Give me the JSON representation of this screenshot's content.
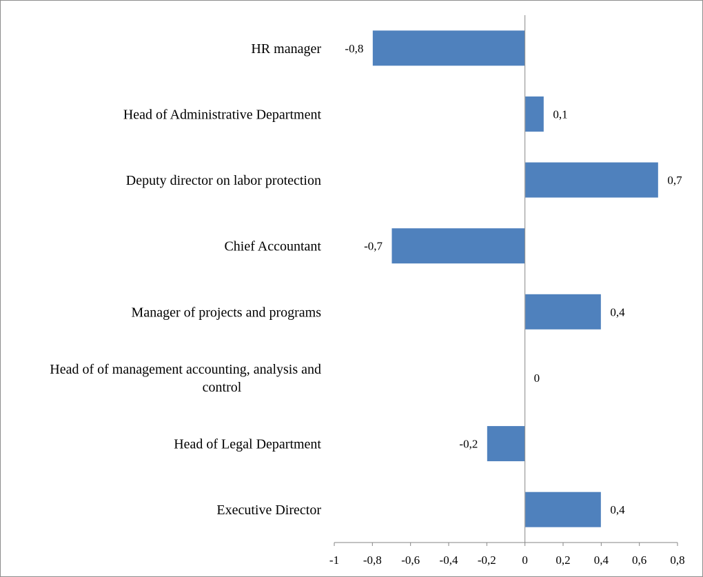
{
  "chart_data": {
    "type": "bar",
    "orientation": "horizontal",
    "categories": [
      "HR manager",
      "Head of Administrative Department",
      "Deputy director on labor protection",
      "Chief Accountant",
      "Manager of projects and programs",
      "Head of of management accounting, analysis and control",
      "Head of Legal Department",
      "Executive Director"
    ],
    "category_lines": [
      [
        "HR manager"
      ],
      [
        "Head of Administrative Department"
      ],
      [
        "Deputy director on labor protection"
      ],
      [
        "Chief Accountant"
      ],
      [
        "Manager of projects and programs"
      ],
      [
        "Head of of management accounting, analysis and",
        "control"
      ],
      [
        "Head of Legal Department"
      ],
      [
        "Executive Director"
      ]
    ],
    "values": [
      -0.8,
      0.1,
      0.7,
      -0.7,
      0.4,
      0,
      -0.2,
      0.4
    ],
    "value_labels": [
      "-0,8",
      "0,1",
      "0,7",
      "-0,7",
      "0,4",
      "0",
      "-0,2",
      "0,4"
    ],
    "xlim": [
      -1,
      0.8
    ],
    "x_ticks": [
      -1,
      -0.8,
      -0.6,
      -0.4,
      -0.2,
      0,
      0.2,
      0.4,
      0.6,
      0.8
    ],
    "x_tick_labels": [
      "-1",
      "-0,8",
      "-0,6",
      "-0,4",
      "-0,2",
      "0",
      "0,2",
      "0,4",
      "0,6",
      "0,8"
    ],
    "title": "",
    "xlabel": "",
    "ylabel": "",
    "grid": false,
    "legend": "none",
    "bar_color": "#4f81bd",
    "bar_edge_color": "#ffffff",
    "axis_color": "#868686"
  }
}
